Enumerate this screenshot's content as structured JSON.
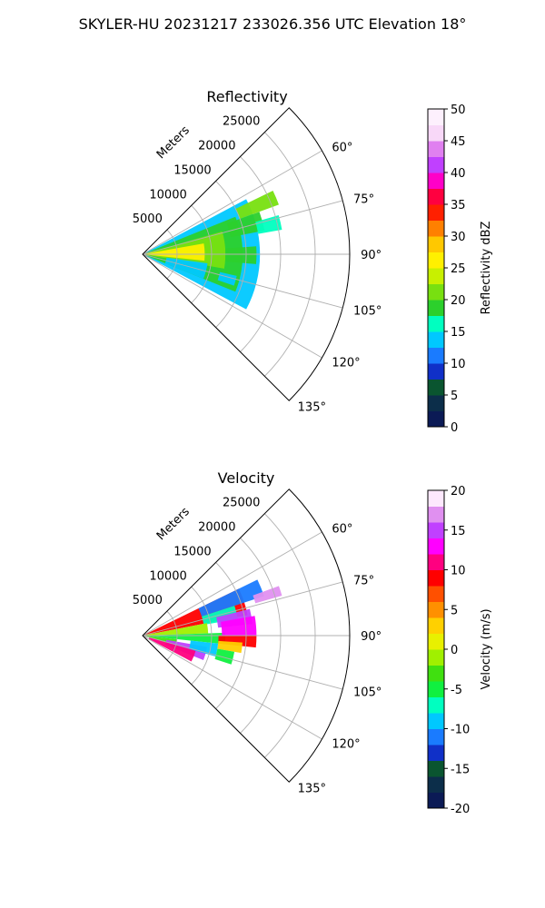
{
  "figure": {
    "title": "SKYLER-HU  20231217  233026.356 UTC Elevation 18°"
  },
  "colors": {
    "grid": "#b0b0b0",
    "axis": "#000000"
  },
  "chart_data": [
    {
      "type": "polar-sector",
      "title": "Reflectivity",
      "theta_range_deg": [
        45,
        135
      ],
      "theta_ticks": [
        "60°",
        "75°",
        "90°",
        "105°",
        "120°",
        "135°"
      ],
      "theta_tick_values": [
        60,
        75,
        90,
        105,
        120,
        135
      ],
      "r_range": [
        0,
        30000
      ],
      "r_label": "Meters",
      "r_ticks": [
        5000,
        10000,
        15000,
        20000,
        25000
      ],
      "grid": true,
      "colorbar": {
        "label": "Reflectivity dBZ",
        "range": [
          0,
          50
        ],
        "ticks": [
          0,
          5,
          10,
          15,
          20,
          25,
          30,
          35,
          40,
          45,
          50
        ],
        "stops": [
          "#0b1a55",
          "#0c2e4a",
          "#0a5530",
          "#1030c8",
          "#1a7bff",
          "#00c8ff",
          "#00ffc0",
          "#2cd02c",
          "#78e010",
          "#c8f000",
          "#fff000",
          "#ffc800",
          "#ff8000",
          "#ff2000",
          "#ff0040",
          "#ff00c8",
          "#c040ff",
          "#e080f0",
          "#f8d8f8",
          "#fdf0fd"
        ]
      },
      "field": {
        "bands": [
          {
            "theta": [
              62,
              118
            ],
            "r": [
              0,
              17000
            ],
            "value": 14
          },
          {
            "theta": [
              68,
              112
            ],
            "r": [
              0,
              14500
            ],
            "value": 19
          },
          {
            "theta": [
              74,
              100
            ],
            "r": [
              0,
              12000
            ],
            "value": 22
          },
          {
            "theta": [
              80,
              96
            ],
            "r": [
              0,
              9000
            ],
            "value": 25
          },
          {
            "theta": [
              84,
              92
            ],
            "r": [
              0,
              5000
            ],
            "value": 27
          },
          {
            "theta": [
              98,
              112
            ],
            "r": [
              3500,
              9500
            ],
            "value": 13
          },
          {
            "theta": [
              70,
              79
            ],
            "r": [
              13000,
              18000
            ],
            "value": 18
          },
          {
            "theta": [
              64,
              70
            ],
            "r": [
              15000,
              21000
            ],
            "value": 20
          },
          {
            "theta": [
              74,
              80
            ],
            "r": [
              17000,
              20500
            ],
            "value": 16
          },
          {
            "theta": [
              103,
              109
            ],
            "r": [
              11500,
              14000
            ],
            "value": 14
          },
          {
            "theta": [
              86,
              95
            ],
            "r": [
              12000,
              16500
            ],
            "value": 18
          }
        ]
      }
    },
    {
      "type": "polar-sector",
      "title": "Velocity",
      "theta_range_deg": [
        45,
        135
      ],
      "theta_ticks": [
        "60°",
        "75°",
        "90°",
        "105°",
        "120°",
        "135°"
      ],
      "theta_tick_values": [
        60,
        75,
        90,
        105,
        120,
        135
      ],
      "r_range": [
        0,
        30000
      ],
      "r_label": "Meters",
      "r_ticks": [
        5000,
        10000,
        15000,
        20000,
        25000
      ],
      "grid": true,
      "colorbar": {
        "label": "Velocity (m/s)",
        "range": [
          -20,
          20
        ],
        "ticks": [
          -20,
          -15,
          -10,
          -5,
          0,
          5,
          10,
          15,
          20
        ],
        "stops": [
          "#0b1a55",
          "#0c2e4a",
          "#0a5530",
          "#1030c8",
          "#1a7bff",
          "#00c8ff",
          "#00ffc0",
          "#10f040",
          "#40e010",
          "#a0f000",
          "#e8f000",
          "#ffd000",
          "#ff9000",
          "#ff5000",
          "#ff0000",
          "#ff0080",
          "#ff00ff",
          "#c040ff",
          "#e090f0",
          "#fde8fd"
        ]
      },
      "field": {
        "bands": [
          {
            "theta": [
              64,
              79
            ],
            "r": [
              0,
              15500
            ],
            "value": 9
          },
          {
            "theta": [
              64,
              72
            ],
            "r": [
              9000,
              18500
            ],
            "value": -11
          },
          {
            "theta": [
              72,
              80
            ],
            "r": [
              9000,
              14000
            ],
            "value": -7
          },
          {
            "theta": [
              76,
              84
            ],
            "r": [
              11000,
              16000
            ],
            "value": 14
          },
          {
            "theta": [
              79,
              88
            ],
            "r": [
              0,
              9500
            ],
            "value": -1
          },
          {
            "theta": [
              88,
              96
            ],
            "r": [
              0,
              12000
            ],
            "value": -5
          },
          {
            "theta": [
              80,
              90
            ],
            "r": [
              11500,
              16500
            ],
            "value": 13
          },
          {
            "theta": [
              90,
              96
            ],
            "r": [
              11000,
              16500
            ],
            "value": 8
          },
          {
            "theta": [
              94,
              100
            ],
            "r": [
              11000,
              14500
            ],
            "value": 2
          },
          {
            "theta": [
              96,
              106
            ],
            "r": [
              0,
              5000
            ],
            "value": -3
          },
          {
            "theta": [
              100,
              112
            ],
            "r": [
              3500,
              9500
            ],
            "value": 14
          },
          {
            "theta": [
              106,
              118
            ],
            "r": [
              1000,
              8000
            ],
            "value": 11
          },
          {
            "theta": [
              96,
              106
            ],
            "r": [
              7000,
              11000
            ],
            "value": -9
          },
          {
            "theta": [
              100,
              108
            ],
            "r": [
              11000,
              13500
            ],
            "value": -6
          },
          {
            "theta": [
              70,
              74
            ],
            "r": [
              17000,
              21000
            ],
            "value": 16
          }
        ]
      }
    }
  ]
}
